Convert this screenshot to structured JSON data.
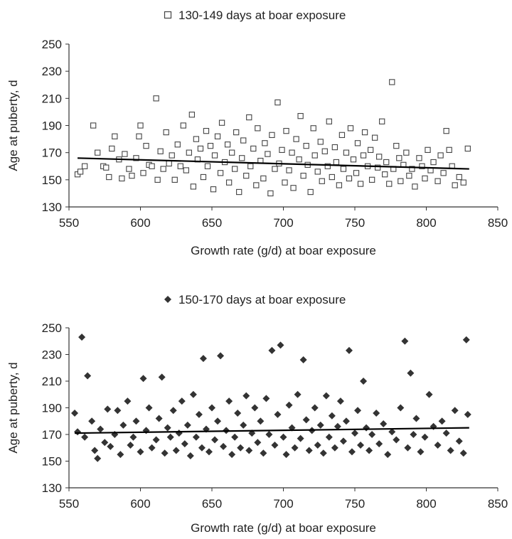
{
  "chart_data": [
    {
      "type": "scatter",
      "title": "",
      "xlabel": "Growth rate (g/d) at boar exposure",
      "ylabel": "Age at puberty, d",
      "xlim": [
        550,
        850
      ],
      "ylim": [
        130,
        250
      ],
      "xticks": [
        550,
        600,
        650,
        700,
        750,
        800,
        850
      ],
      "yticks": [
        130,
        150,
        170,
        190,
        210,
        230,
        250
      ],
      "grid": false,
      "legend": "top-center",
      "marker": "open-square",
      "series": [
        {
          "name": "130-149 days at boar exposure",
          "color": "#444444",
          "points": [
            [
              556,
              154
            ],
            [
              558,
              156
            ],
            [
              561,
              160
            ],
            [
              567,
              190
            ],
            [
              570,
              170
            ],
            [
              574,
              160
            ],
            [
              576,
              159
            ],
            [
              578,
              152
            ],
            [
              580,
              173
            ],
            [
              582,
              182
            ],
            [
              585,
              165
            ],
            [
              587,
              151
            ],
            [
              589,
              169
            ],
            [
              592,
              158
            ],
            [
              594,
              153
            ],
            [
              597,
              166
            ],
            [
              599,
              182
            ],
            [
              600,
              190
            ],
            [
              602,
              155
            ],
            [
              604,
              175
            ],
            [
              606,
              161
            ],
            [
              608,
              160
            ],
            [
              611,
              210
            ],
            [
              612,
              150
            ],
            [
              614,
              171
            ],
            [
              616,
              158
            ],
            [
              618,
              185
            ],
            [
              620,
              162
            ],
            [
              622,
              168
            ],
            [
              624,
              150
            ],
            [
              626,
              176
            ],
            [
              628,
              160
            ],
            [
              630,
              190
            ],
            [
              632,
              157
            ],
            [
              634,
              170
            ],
            [
              636,
              198
            ],
            [
              637,
              145
            ],
            [
              639,
              180
            ],
            [
              640,
              165
            ],
            [
              642,
              173
            ],
            [
              644,
              152
            ],
            [
              646,
              186
            ],
            [
              647,
              160
            ],
            [
              649,
              175
            ],
            [
              651,
              143
            ],
            [
              652,
              168
            ],
            [
              654,
              182
            ],
            [
              656,
              155
            ],
            [
              657,
              192
            ],
            [
              659,
              163
            ],
            [
              661,
              176
            ],
            [
              662,
              148
            ],
            [
              664,
              170
            ],
            [
              666,
              158
            ],
            [
              667,
              185
            ],
            [
              669,
              141
            ],
            [
              671,
              166
            ],
            [
              672,
              179
            ],
            [
              674,
              153
            ],
            [
              676,
              196
            ],
            [
              677,
              160
            ],
            [
              679,
              173
            ],
            [
              681,
              146
            ],
            [
              682,
              188
            ],
            [
              684,
              164
            ],
            [
              686,
              151
            ],
            [
              687,
              177
            ],
            [
              689,
              169
            ],
            [
              691,
              140
            ],
            [
              692,
              183
            ],
            [
              694,
              158
            ],
            [
              696,
              207
            ],
            [
              697,
              162
            ],
            [
              699,
              172
            ],
            [
              701,
              148
            ],
            [
              702,
              186
            ],
            [
              704,
              157
            ],
            [
              706,
              170
            ],
            [
              707,
              144
            ],
            [
              709,
              180
            ],
            [
              711,
              165
            ],
            [
              712,
              197
            ],
            [
              714,
              153
            ],
            [
              716,
              175
            ],
            [
              717,
              161
            ],
            [
              719,
              141
            ],
            [
              721,
              188
            ],
            [
              722,
              168
            ],
            [
              724,
              156
            ],
            [
              726,
              178
            ],
            [
              727,
              149
            ],
            [
              729,
              171
            ],
            [
              731,
              160
            ],
            [
              732,
              193
            ],
            [
              734,
              152
            ],
            [
              736,
              174
            ],
            [
              737,
              163
            ],
            [
              739,
              146
            ],
            [
              741,
              183
            ],
            [
              742,
              158
            ],
            [
              744,
              170
            ],
            [
              746,
              151
            ],
            [
              747,
              188
            ],
            [
              749,
              165
            ],
            [
              751,
              155
            ],
            [
              752,
              177
            ],
            [
              754,
              147
            ],
            [
              756,
              168
            ],
            [
              757,
              185
            ],
            [
              759,
              160
            ],
            [
              761,
              172
            ],
            [
              762,
              150
            ],
            [
              764,
              181
            ],
            [
              766,
              159
            ],
            [
              767,
              167
            ],
            [
              769,
              193
            ],
            [
              771,
              154
            ],
            [
              772,
              163
            ],
            [
              774,
              147
            ],
            [
              776,
              222
            ],
            [
              777,
              158
            ],
            [
              779,
              175
            ],
            [
              781,
              166
            ],
            [
              782,
              149
            ],
            [
              784,
              161
            ],
            [
              786,
              170
            ],
            [
              788,
              153
            ],
            [
              790,
              158
            ],
            [
              792,
              145
            ],
            [
              795,
              166
            ],
            [
              797,
              160
            ],
            [
              799,
              151
            ],
            [
              801,
              172
            ],
            [
              803,
              157
            ],
            [
              805,
              163
            ],
            [
              808,
              149
            ],
            [
              810,
              168
            ],
            [
              812,
              155
            ],
            [
              814,
              186
            ],
            [
              816,
              172
            ],
            [
              818,
              160
            ],
            [
              820,
              146
            ],
            [
              823,
              152
            ],
            [
              826,
              148
            ],
            [
              829,
              173
            ]
          ],
          "trend": [
            [
              556,
              166
            ],
            [
              830,
              158
            ]
          ]
        }
      ]
    },
    {
      "type": "scatter",
      "title": "",
      "xlabel": "Growth rate (g/d) at boar exposure",
      "ylabel": "Age at puberty, d",
      "xlim": [
        550,
        850
      ],
      "ylim": [
        130,
        250
      ],
      "xticks": [
        550,
        600,
        650,
        700,
        750,
        800,
        850
      ],
      "yticks": [
        130,
        150,
        170,
        190,
        210,
        230,
        250
      ],
      "grid": false,
      "legend": "top-center",
      "marker": "filled-diamond",
      "series": [
        {
          "name": "150-170 days at boar exposure",
          "color": "#333333",
          "points": [
            [
              554,
              186
            ],
            [
              556,
              172
            ],
            [
              559,
              243
            ],
            [
              561,
              168
            ],
            [
              563,
              214
            ],
            [
              566,
              180
            ],
            [
              568,
              158
            ],
            [
              570,
              152
            ],
            [
              572,
              174
            ],
            [
              575,
              164
            ],
            [
              577,
              189
            ],
            [
              579,
              161
            ],
            [
              582,
              170
            ],
            [
              584,
              188
            ],
            [
              586,
              155
            ],
            [
              588,
              177
            ],
            [
              591,
              195
            ],
            [
              593,
              162
            ],
            [
              595,
              168
            ],
            [
              597,
              180
            ],
            [
              600,
              157
            ],
            [
              602,
              212
            ],
            [
              604,
              173
            ],
            [
              606,
              190
            ],
            [
              608,
              160
            ],
            [
              611,
              166
            ],
            [
              613,
              182
            ],
            [
              615,
              213
            ],
            [
              617,
              156
            ],
            [
              619,
              175
            ],
            [
              621,
              168
            ],
            [
              623,
              188
            ],
            [
              625,
              158
            ],
            [
              627,
              171
            ],
            [
              629,
              195
            ],
            [
              631,
              163
            ],
            [
              633,
              177
            ],
            [
              635,
              154
            ],
            [
              637,
              200
            ],
            [
              639,
              168
            ],
            [
              641,
              185
            ],
            [
              643,
              160
            ],
            [
              644,
              227
            ],
            [
              646,
              174
            ],
            [
              648,
              157
            ],
            [
              650,
              190
            ],
            [
              652,
              166
            ],
            [
              654,
              180
            ],
            [
              656,
              229
            ],
            [
              658,
              161
            ],
            [
              660,
              173
            ],
            [
              662,
              195
            ],
            [
              664,
              155
            ],
            [
              666,
              168
            ],
            [
              668,
              186
            ],
            [
              670,
              160
            ],
            [
              672,
              177
            ],
            [
              674,
              199
            ],
            [
              676,
              158
            ],
            [
              678,
              171
            ],
            [
              680,
              190
            ],
            [
              682,
              164
            ],
            [
              684,
              180
            ],
            [
              686,
              156
            ],
            [
              688,
              197
            ],
            [
              690,
              170
            ],
            [
              692,
              233
            ],
            [
              694,
              162
            ],
            [
              696,
              185
            ],
            [
              698,
              237
            ],
            [
              700,
              168
            ],
            [
              702,
              155
            ],
            [
              704,
              192
            ],
            [
              706,
              175
            ],
            [
              708,
              160
            ],
            [
              710,
              200
            ],
            [
              712,
              167
            ],
            [
              714,
              226
            ],
            [
              716,
              181
            ],
            [
              718,
              158
            ],
            [
              720,
              173
            ],
            [
              722,
              190
            ],
            [
              724,
              162
            ],
            [
              726,
              177
            ],
            [
              728,
              156
            ],
            [
              730,
              199
            ],
            [
              732,
              168
            ],
            [
              734,
              184
            ],
            [
              736,
              160
            ],
            [
              738,
              176
            ],
            [
              740,
              195
            ],
            [
              742,
              165
            ],
            [
              744,
              180
            ],
            [
              746,
              233
            ],
            [
              748,
              157
            ],
            [
              750,
              171
            ],
            [
              752,
              188
            ],
            [
              754,
              162
            ],
            [
              756,
              210
            ],
            [
              758,
              175
            ],
            [
              760,
              158
            ],
            [
              762,
              170
            ],
            [
              765,
              186
            ],
            [
              767,
              163
            ],
            [
              770,
              178
            ],
            [
              773,
              155
            ],
            [
              776,
              172
            ],
            [
              779,
              166
            ],
            [
              782,
              190
            ],
            [
              785,
              240
            ],
            [
              787,
              160
            ],
            [
              789,
              216
            ],
            [
              791,
              170
            ],
            [
              793,
              182
            ],
            [
              796,
              157
            ],
            [
              799,
              168
            ],
            [
              802,
              200
            ],
            [
              805,
              176
            ],
            [
              808,
              162
            ],
            [
              811,
              180
            ],
            [
              814,
              171
            ],
            [
              817,
              158
            ],
            [
              820,
              188
            ],
            [
              823,
              165
            ],
            [
              826,
              156
            ],
            [
              828,
              241
            ],
            [
              829,
              185
            ]
          ],
          "trend": [
            [
              554,
              171
            ],
            [
              830,
              175
            ]
          ]
        }
      ]
    }
  ]
}
